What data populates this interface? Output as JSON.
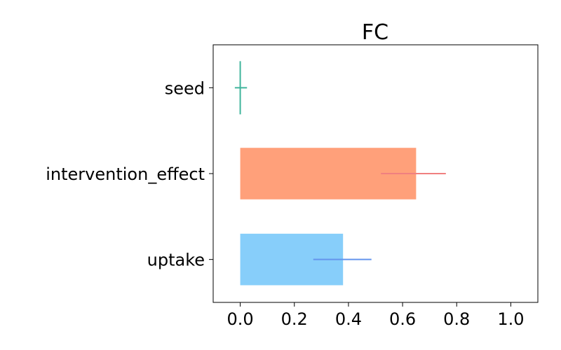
{
  "chart_data": {
    "type": "bar",
    "orientation": "horizontal",
    "title": "FC",
    "xlabel": "",
    "ylabel": "",
    "xlim": [
      -0.1,
      1.1
    ],
    "xticks": [
      0.0,
      0.2,
      0.4,
      0.6,
      0.8,
      1.0
    ],
    "xtick_labels": [
      "0.0",
      "0.2",
      "0.4",
      "0.6",
      "0.8",
      "1.0"
    ],
    "categories": [
      "seed",
      "intervention_effect",
      "uptake"
    ],
    "values": [
      0.0,
      0.65,
      0.38
    ],
    "error_ranges": [
      {
        "low": -0.02,
        "high": 0.025
      },
      {
        "low": 0.52,
        "high": 0.76
      },
      {
        "low": 0.27,
        "high": 0.485
      }
    ],
    "bar_colors": [
      "#66c2a5",
      "#ffa07a",
      "#87cefa"
    ],
    "error_colors": [
      "#40b49c",
      "#f08080",
      "#6495ed"
    ],
    "grid": false,
    "legend": "none"
  }
}
